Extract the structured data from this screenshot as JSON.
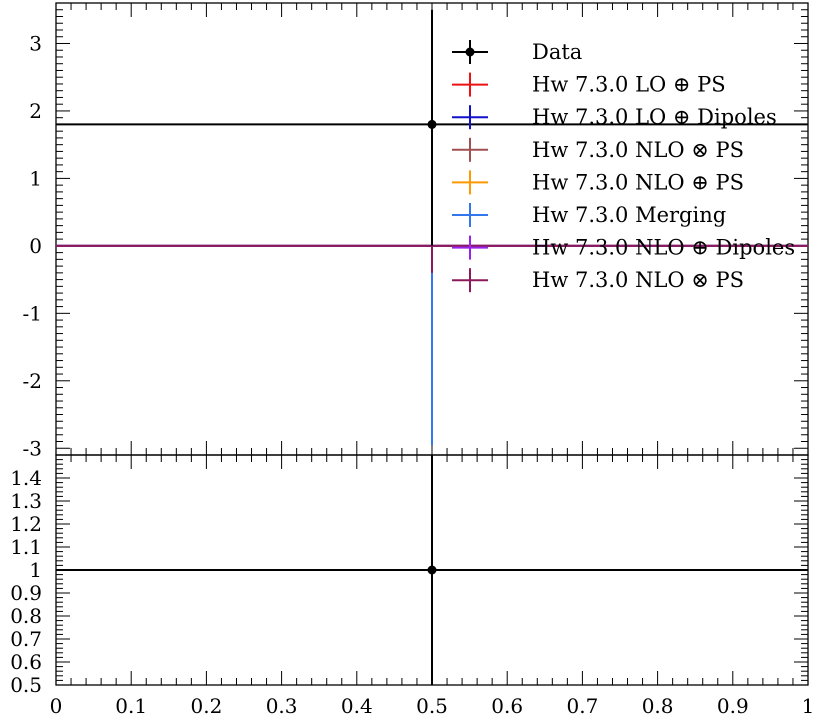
{
  "chart_data": [
    {
      "type": "line",
      "panel": "main",
      "title": "",
      "xlabel": "",
      "ylabel": "",
      "xlim": [
        0,
        1
      ],
      "ylim": [
        -3.1,
        3.6
      ],
      "yticks": [
        {
          "value": 3,
          "label": "3"
        },
        {
          "value": 2,
          "label": "2"
        },
        {
          "value": 1,
          "label": "1"
        },
        {
          "value": 0,
          "label": "0"
        },
        {
          "value": -1,
          "label": "-1"
        },
        {
          "value": -2,
          "label": "-2"
        },
        {
          "value": -3,
          "label": "-3"
        }
      ],
      "legend_position": "top-right",
      "series": [
        {
          "name": "Data",
          "color": "#000000",
          "marker": "dot",
          "x": 0.5,
          "y": 1.8,
          "y_err_low": 1.8,
          "y_err_high": 1.7,
          "x_range": [
            0,
            1
          ]
        },
        {
          "name": "Hw 7.3.0 LO ⊕ PS",
          "color": "#ee1111",
          "x": 0.5,
          "y": 0,
          "y_err_low": 0,
          "y_err_high": 0,
          "x_range": [
            0,
            1
          ]
        },
        {
          "name": "Hw 7.3.0 LO ⊕ Dipoles",
          "color": "#1111cc",
          "x": 0.5,
          "y": 0,
          "y_err_low": 0,
          "y_err_high": 0,
          "x_range": [
            0,
            1
          ]
        },
        {
          "name": "Hw 7.3.0 NLO ⊗ PS",
          "color": "#a05050",
          "x": 0.5,
          "y": 0,
          "y_err_low": 0,
          "y_err_high": 0,
          "x_range": [
            0,
            1
          ]
        },
        {
          "name": "Hw 7.3.0 NLO ⊕ PS",
          "color": "#ff9900",
          "x": 0.5,
          "y": 0,
          "y_err_low": 0,
          "y_err_high": 0,
          "x_range": [
            0,
            1
          ]
        },
        {
          "name": "Hw 7.3.0 Merging",
          "color": "#3377ee",
          "x": 0.5,
          "y": 0,
          "y_err_low": 2.95,
          "y_err_high": 2.95,
          "x_range": [
            0,
            1
          ]
        },
        {
          "name": "Hw 7.3.0 NLO ⊕ Dipoles",
          "color": "#9922ee",
          "x": 0.5,
          "y": 0,
          "y_err_low": 0,
          "y_err_high": 0,
          "x_range": [
            0,
            1
          ]
        },
        {
          "name": "Hw 7.3.0 NLO ⊗ PS",
          "color": "#8b1a5a",
          "x": 0.5,
          "y": 0,
          "y_err_low": 0.4,
          "y_err_high": 0.4,
          "x_range": [
            0,
            1
          ]
        }
      ]
    },
    {
      "type": "line",
      "panel": "ratio",
      "title": "",
      "xlabel": "",
      "ylabel": "",
      "xlim": [
        0,
        1
      ],
      "ylim": [
        0.5,
        1.5
      ],
      "xticks": [
        {
          "value": 0,
          "label": "0"
        },
        {
          "value": 0.1,
          "label": "0.1"
        },
        {
          "value": 0.2,
          "label": "0.2"
        },
        {
          "value": 0.3,
          "label": "0.3"
        },
        {
          "value": 0.4,
          "label": "0.4"
        },
        {
          "value": 0.5,
          "label": "0.5"
        },
        {
          "value": 0.6,
          "label": "0.6"
        },
        {
          "value": 0.7,
          "label": "0.7"
        },
        {
          "value": 0.8,
          "label": "0.8"
        },
        {
          "value": 0.9,
          "label": "0.9"
        },
        {
          "value": 1,
          "label": "1"
        }
      ],
      "yticks": [
        {
          "value": 1.4,
          "label": "1.4"
        },
        {
          "value": 1.3,
          "label": "1.3"
        },
        {
          "value": 1.2,
          "label": "1.2"
        },
        {
          "value": 1.1,
          "label": "1.1"
        },
        {
          "value": 1.0,
          "label": "1"
        },
        {
          "value": 0.9,
          "label": "0.9"
        },
        {
          "value": 0.8,
          "label": "0.8"
        },
        {
          "value": 0.7,
          "label": "0.7"
        },
        {
          "value": 0.6,
          "label": "0.6"
        },
        {
          "value": 0.5,
          "label": "0.5"
        }
      ],
      "series": [
        {
          "name": "Data",
          "color": "#000000",
          "marker": "dot",
          "x": 0.5,
          "y": 1.0,
          "y_err_low": 0.5,
          "y_err_high": 0.5,
          "x_range": [
            0,
            1
          ]
        }
      ]
    }
  ]
}
